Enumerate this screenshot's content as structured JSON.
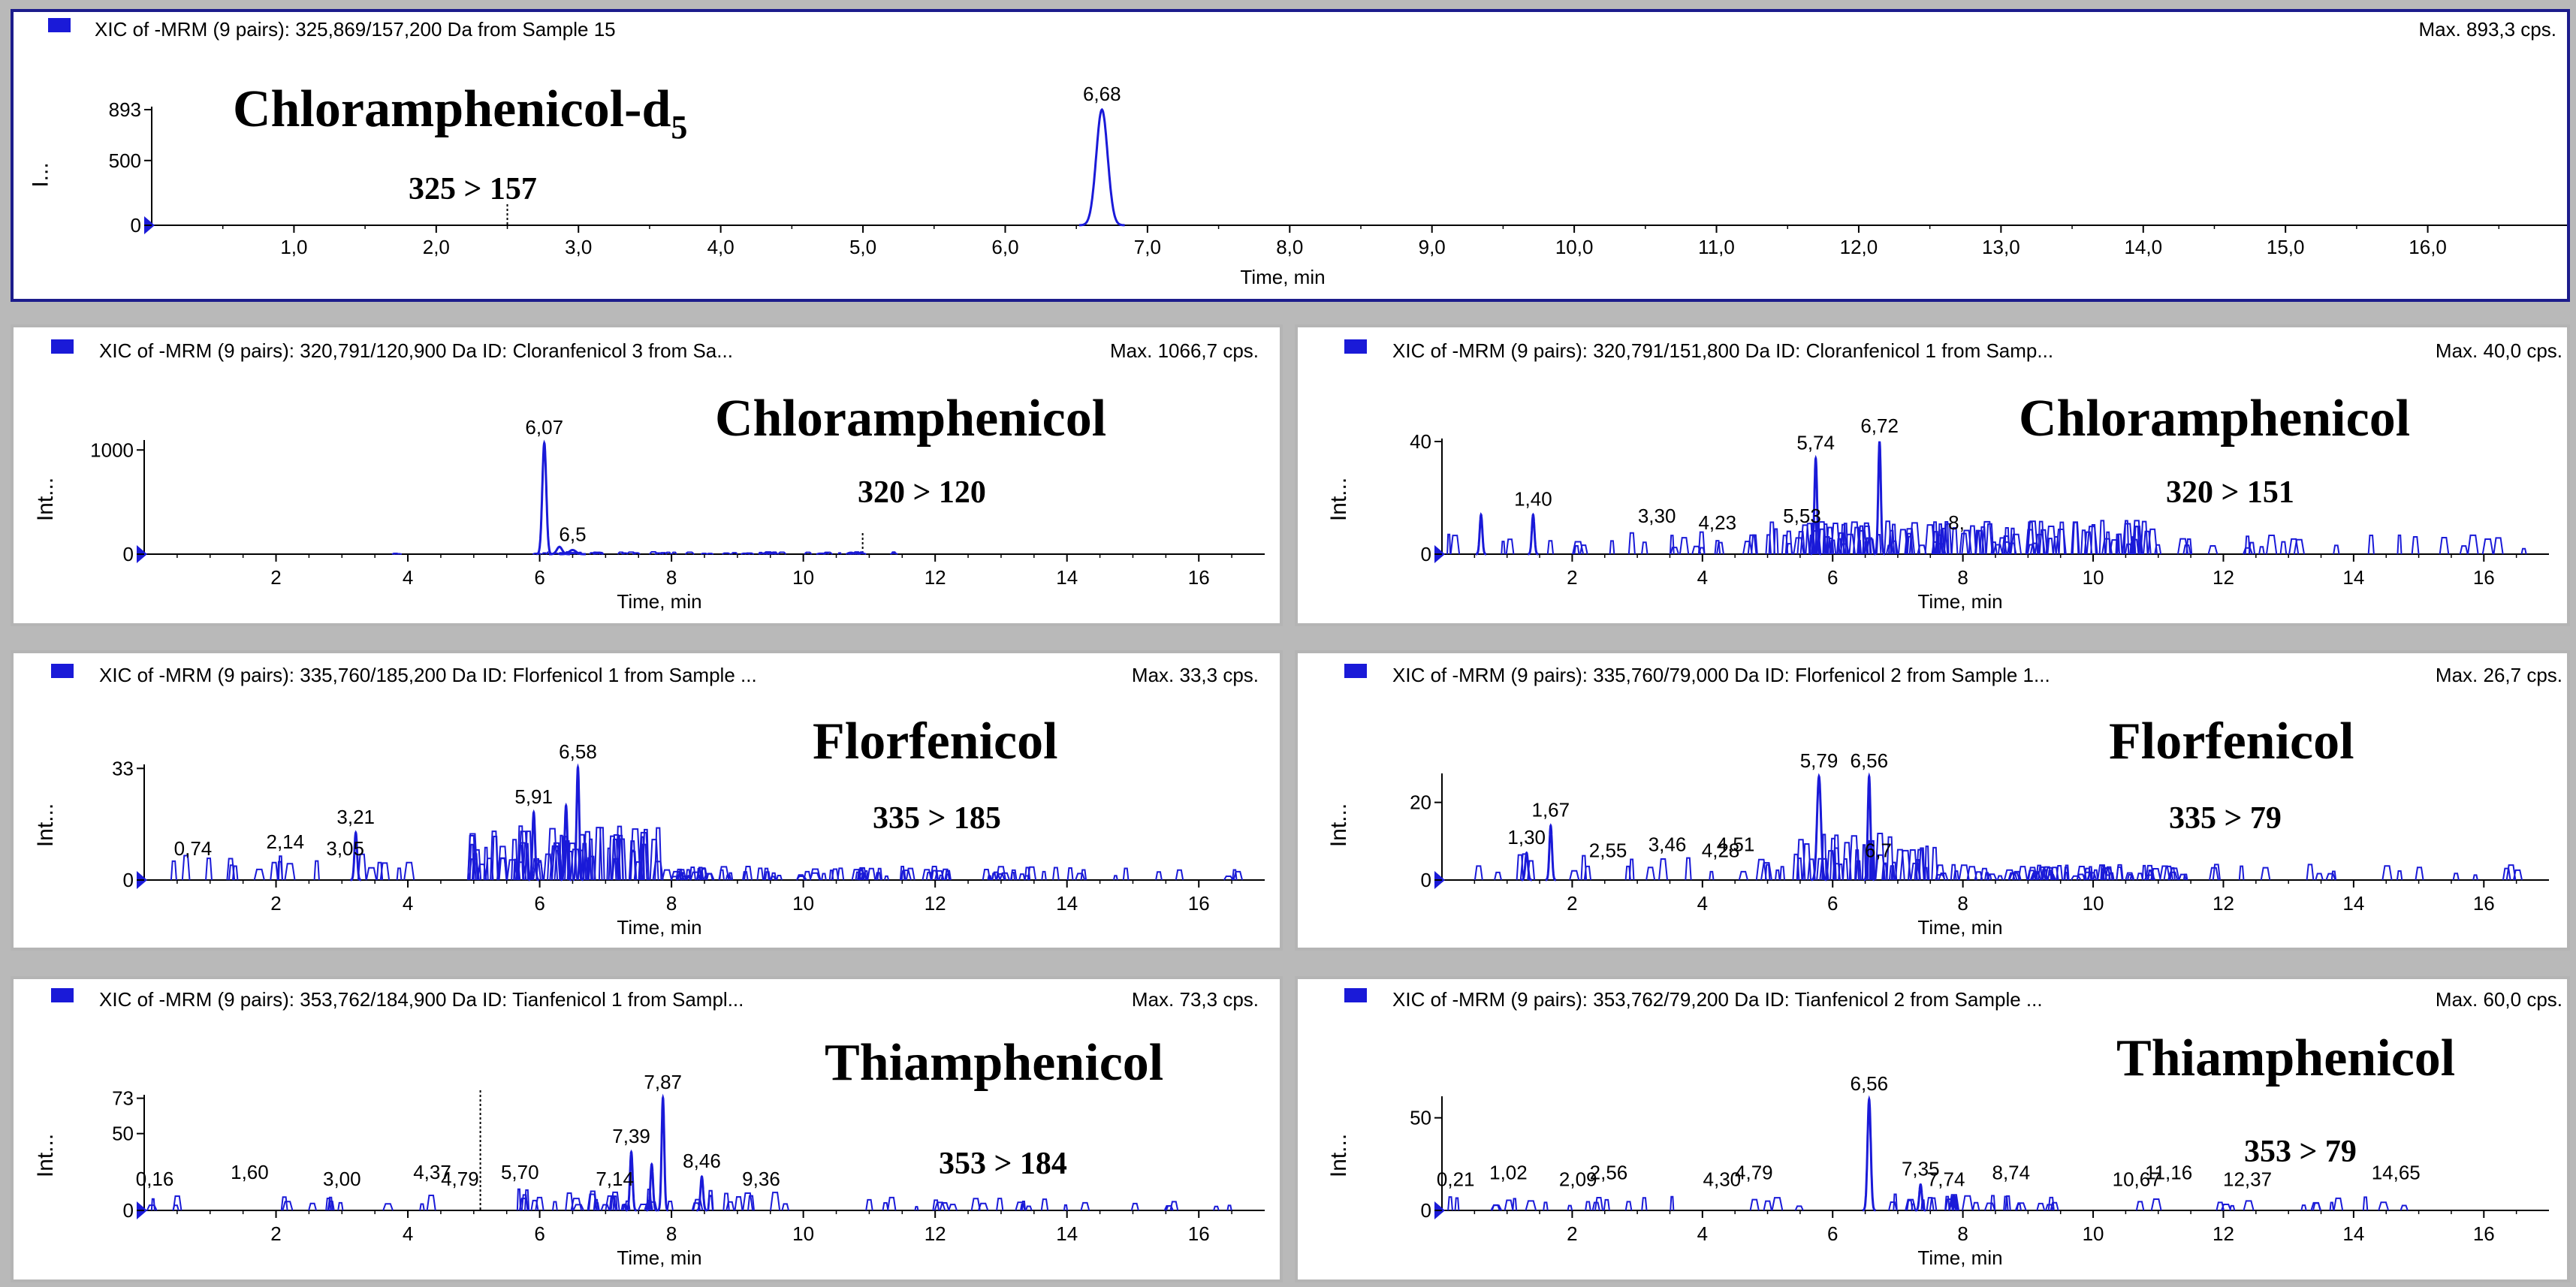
{
  "chart_data": [
    {
      "id": "p0",
      "type": "line",
      "header": "XIC of -MRM (9 pairs): 325,869/157,200 Da  from Sample 15",
      "max_label": "Max. 893,3 cps.",
      "compound": "Chloramphenicol-d",
      "compound_sub": "5",
      "transition": "325 > 157",
      "ylabel": "I...",
      "xlabel": "Time, min",
      "xlim": [
        0,
        17.0
      ],
      "ylim": [
        0,
        893
      ],
      "xticks": [
        "1,0",
        "2,0",
        "3,0",
        "4,0",
        "5,0",
        "6,0",
        "7,0",
        "8,0",
        "9,0",
        "10,0",
        "11,0",
        "12,0",
        "13,0",
        "14,0",
        "15,0",
        "16,0"
      ],
      "xtick_values": [
        1,
        2,
        3,
        4,
        5,
        6,
        7,
        8,
        9,
        10,
        11,
        12,
        13,
        14,
        15,
        16
      ],
      "yticks": [
        "893",
        "500",
        "0"
      ],
      "ytick_values": [
        893,
        500,
        0
      ],
      "dotted_marker": 2.5,
      "peak_labels": [
        {
          "x": 6.68,
          "text": "6,68"
        }
      ],
      "peaks": [
        [
          6.68,
          893,
          0.04
        ]
      ],
      "noise": []
    },
    {
      "id": "p1",
      "type": "line",
      "header": "XIC of -MRM (9 pairs): 320,791/120,900 Da ID: Cloranfenicol 3 from Sa...",
      "max_label": "Max. 1066,7 cps.",
      "compound": "Chloramphenicol",
      "compound_sub": "",
      "transition": "320 > 120",
      "ylabel": "Int...",
      "xlabel": "Time, min",
      "xlim": [
        0,
        17.0
      ],
      "ylim": [
        0,
        1066.7
      ],
      "xticks": [
        "2",
        "4",
        "6",
        "8",
        "10",
        "12",
        "14",
        "16"
      ],
      "xtick_values": [
        2,
        4,
        6,
        8,
        10,
        12,
        14,
        16
      ],
      "yticks": [
        "1000",
        "0"
      ],
      "ytick_values": [
        1000,
        0
      ],
      "dotted_marker": 10.9,
      "peak_labels": [
        {
          "x": 6.07,
          "text": "6,07"
        },
        {
          "x": 6.5,
          "text": "6,5"
        }
      ],
      "peaks": [
        [
          6.07,
          1066.7,
          0.03
        ],
        [
          6.5,
          40,
          0.05
        ],
        [
          6.3,
          70,
          0.04
        ]
      ],
      "noise": [
        {
          "from": 5.9,
          "to": 11.5,
          "max": 22,
          "density": 60
        },
        {
          "from": 3.8,
          "to": 4.0,
          "max": 15,
          "density": 2
        }
      ]
    },
    {
      "id": "p2",
      "type": "line",
      "header": "XIC of -MRM (9 pairs): 320,791/151,800 Da ID: Cloranfenicol 1 from Samp...",
      "max_label": "Max. 40,0 cps.",
      "compound": "Chloramphenicol",
      "compound_sub": "",
      "transition": "320 > 151",
      "ylabel": "Int...",
      "xlabel": "Time, min",
      "xlim": [
        0,
        17.0
      ],
      "ylim": [
        0,
        40
      ],
      "xticks": [
        "2",
        "4",
        "6",
        "8",
        "10",
        "12",
        "14",
        "16"
      ],
      "xtick_values": [
        2,
        4,
        6,
        8,
        10,
        12,
        14,
        16
      ],
      "yticks": [
        "40",
        "0"
      ],
      "ytick_values": [
        40,
        0
      ],
      "dotted_marker": null,
      "peak_labels": [
        {
          "x": 1.4,
          "text": "1,40"
        },
        {
          "x": 3.3,
          "text": "3,30"
        },
        {
          "x": 4.23,
          "text": "4,23"
        },
        {
          "x": 5.53,
          "text": "5,53"
        },
        {
          "x": 5.74,
          "text": "5,74"
        },
        {
          "x": 6.72,
          "text": "6,72"
        },
        {
          "x": 7.9,
          "text": "8,"
        }
      ],
      "peaks": [
        [
          5.74,
          34,
          0.02
        ],
        [
          6.72,
          40,
          0.02
        ],
        [
          1.4,
          14,
          0.02
        ],
        [
          0.6,
          14,
          0.02
        ]
      ],
      "noise": [
        {
          "from": 0.05,
          "to": 5.0,
          "max": 8,
          "density": 22
        },
        {
          "from": 5.0,
          "to": 11.0,
          "max": 12,
          "density": 120
        },
        {
          "from": 11.0,
          "to": 16.9,
          "max": 7,
          "density": 22
        }
      ]
    },
    {
      "id": "p3",
      "type": "line",
      "header": "XIC of -MRM (9 pairs): 335,760/185,200 Da ID: Florfenicol 1 from Sample ...",
      "max_label": "Max. 33,3 cps.",
      "compound": "Florfenicol",
      "compound_sub": "",
      "transition": "335 > 185",
      "ylabel": "Int...",
      "xlabel": "Time, min",
      "xlim": [
        0,
        17.0
      ],
      "ylim": [
        0,
        33.3
      ],
      "xticks": [
        "2",
        "4",
        "6",
        "8",
        "10",
        "12",
        "14",
        "16"
      ],
      "xtick_values": [
        2,
        4,
        6,
        8,
        10,
        12,
        14,
        16
      ],
      "yticks": [
        "33",
        "0"
      ],
      "ytick_values": [
        33,
        0
      ],
      "dotted_marker": null,
      "peak_labels": [
        {
          "x": 0.74,
          "text": "0,74"
        },
        {
          "x": 2.14,
          "text": "2,14"
        },
        {
          "x": 3.05,
          "text": "3,05"
        },
        {
          "x": 3.21,
          "text": "3,21"
        },
        {
          "x": 5.91,
          "text": "5,91"
        },
        {
          "x": 6.58,
          "text": "6,58"
        }
      ],
      "peaks": [
        [
          6.58,
          33.3,
          0.02
        ],
        [
          5.91,
          20,
          0.02
        ],
        [
          3.21,
          14,
          0.02
        ],
        [
          6.4,
          22,
          0.02
        ]
      ],
      "noise": [
        {
          "from": 0.4,
          "to": 4.5,
          "max": 8,
          "density": 18
        },
        {
          "from": 4.9,
          "to": 7.8,
          "max": 16,
          "density": 70
        },
        {
          "from": 7.8,
          "to": 13.5,
          "max": 4,
          "density": 80
        },
        {
          "from": 13.5,
          "to": 17.0,
          "max": 4,
          "density": 12
        }
      ]
    },
    {
      "id": "p4",
      "type": "line",
      "header": "XIC of -MRM (9 pairs): 335,760/79,000 Da ID: Florfenicol 2 from Sample 1...",
      "max_label": "Max. 26,7 cps.",
      "compound": "Florfenicol",
      "compound_sub": "",
      "transition": "335 > 79",
      "ylabel": "Int...",
      "xlabel": "Time, min",
      "xlim": [
        0,
        17.0
      ],
      "ylim": [
        0,
        26.7
      ],
      "xticks": [
        "2",
        "4",
        "6",
        "8",
        "10",
        "12",
        "14",
        "16"
      ],
      "xtick_values": [
        2,
        4,
        6,
        8,
        10,
        12,
        14,
        16
      ],
      "yticks": [
        "20",
        "0"
      ],
      "ytick_values": [
        20,
        0
      ],
      "dotted_marker": null,
      "peak_labels": [
        {
          "x": 1.3,
          "text": "1,30"
        },
        {
          "x": 1.67,
          "text": "1,67"
        },
        {
          "x": 2.55,
          "text": "2,55"
        },
        {
          "x": 3.46,
          "text": "3,46"
        },
        {
          "x": 4.28,
          "text": "4,28"
        },
        {
          "x": 4.51,
          "text": "4,51"
        },
        {
          "x": 5.79,
          "text": "5,79"
        },
        {
          "x": 6.56,
          "text": "6,56"
        },
        {
          "x": 6.7,
          "text": "6,7"
        }
      ],
      "peaks": [
        [
          5.79,
          26.7,
          0.03
        ],
        [
          6.56,
          26.7,
          0.02
        ],
        [
          1.67,
          14,
          0.02
        ],
        [
          1.3,
          7,
          0.02
        ]
      ],
      "noise": [
        {
          "from": 0.5,
          "to": 5.5,
          "max": 7,
          "density": 22
        },
        {
          "from": 5.5,
          "to": 7.6,
          "max": 12,
          "density": 40
        },
        {
          "from": 7.6,
          "to": 11.5,
          "max": 4,
          "density": 70
        },
        {
          "from": 11.5,
          "to": 16.6,
          "max": 4,
          "density": 16
        }
      ]
    },
    {
      "id": "p5",
      "type": "line",
      "header": "XIC of -MRM (9 pairs): 353,762/184,900 Da ID: Tianfenicol 1 from Sampl...",
      "max_label": "Max. 73,3 cps.",
      "compound": "Thiamphenicol",
      "compound_sub": "",
      "transition": "353 > 184",
      "ylabel": "Int...",
      "xlabel": "Time, min",
      "xlim": [
        0,
        17.0
      ],
      "ylim": [
        0,
        73.3
      ],
      "xticks": [
        "2",
        "4",
        "6",
        "8",
        "10",
        "12",
        "14",
        "16"
      ],
      "xtick_values": [
        2,
        4,
        6,
        8,
        10,
        12,
        14,
        16
      ],
      "yticks": [
        "73",
        "50",
        "0"
      ],
      "ytick_values": [
        73,
        50,
        0
      ],
      "dotted_marker": 5.1,
      "peak_labels": [
        {
          "x": 0.16,
          "text": "0,16"
        },
        {
          "x": 1.6,
          "text": "1,60"
        },
        {
          "x": 3.0,
          "text": "3,00"
        },
        {
          "x": 4.37,
          "text": "4,37"
        },
        {
          "x": 4.79,
          "text": "4,79"
        },
        {
          "x": 5.7,
          "text": "5,70"
        },
        {
          "x": 7.14,
          "text": "7,14"
        },
        {
          "x": 7.39,
          "text": "7,39"
        },
        {
          "x": 7.87,
          "text": "7,87"
        },
        {
          "x": 8.46,
          "text": "8,46"
        },
        {
          "x": 9.36,
          "text": "9,36"
        }
      ],
      "peaks": [
        [
          7.87,
          73.3,
          0.02
        ],
        [
          7.39,
          38,
          0.02
        ],
        [
          8.46,
          22,
          0.02
        ],
        [
          7.7,
          30,
          0.02
        ]
      ],
      "noise": [
        {
          "from": 0.05,
          "to": 5.0,
          "max": 10,
          "density": 14
        },
        {
          "from": 5.5,
          "to": 9.8,
          "max": 14,
          "density": 40
        },
        {
          "from": 10.8,
          "to": 16.6,
          "max": 9,
          "density": 24
        }
      ]
    },
    {
      "id": "p6",
      "type": "line",
      "header": "XIC of -MRM (9 pairs): 353,762/79,200 Da ID: Tianfenicol 2 from Sample ...",
      "max_label": "Max. 60,0 cps.",
      "compound": "Thiamphenicol",
      "compound_sub": "",
      "transition": "353 > 79",
      "ylabel": "Int...",
      "xlabel": "Time, min",
      "xlim": [
        0,
        17.0
      ],
      "ylim": [
        0,
        60.0
      ],
      "xticks": [
        "2",
        "4",
        "6",
        "8",
        "10",
        "12",
        "14",
        "16"
      ],
      "xtick_values": [
        2,
        4,
        6,
        8,
        10,
        12,
        14,
        16
      ],
      "yticks": [
        "50",
        "0"
      ],
      "ytick_values": [
        50,
        0
      ],
      "dotted_marker": null,
      "peak_labels": [
        {
          "x": 0.21,
          "text": "0,21"
        },
        {
          "x": 1.02,
          "text": "1,02"
        },
        {
          "x": 2.09,
          "text": "2,09"
        },
        {
          "x": 2.56,
          "text": "2,56"
        },
        {
          "x": 4.3,
          "text": "4,30"
        },
        {
          "x": 4.79,
          "text": "4,79"
        },
        {
          "x": 6.56,
          "text": "6,56"
        },
        {
          "x": 7.35,
          "text": "7,35"
        },
        {
          "x": 7.74,
          "text": "7,74"
        },
        {
          "x": 8.74,
          "text": "8,74"
        },
        {
          "x": 10.67,
          "text": "10,67"
        },
        {
          "x": 11.16,
          "text": "11,16"
        },
        {
          "x": 12.37,
          "text": "12,37"
        },
        {
          "x": 14.65,
          "text": "14,65"
        }
      ],
      "peaks": [
        [
          6.56,
          60,
          0.025
        ],
        [
          7.35,
          14,
          0.02
        ]
      ],
      "noise": [
        {
          "from": 0.05,
          "to": 5.5,
          "max": 8,
          "density": 20
        },
        {
          "from": 6.9,
          "to": 9.6,
          "max": 9,
          "density": 28
        },
        {
          "from": 10.5,
          "to": 14.8,
          "max": 8,
          "density": 14
        }
      ]
    }
  ]
}
